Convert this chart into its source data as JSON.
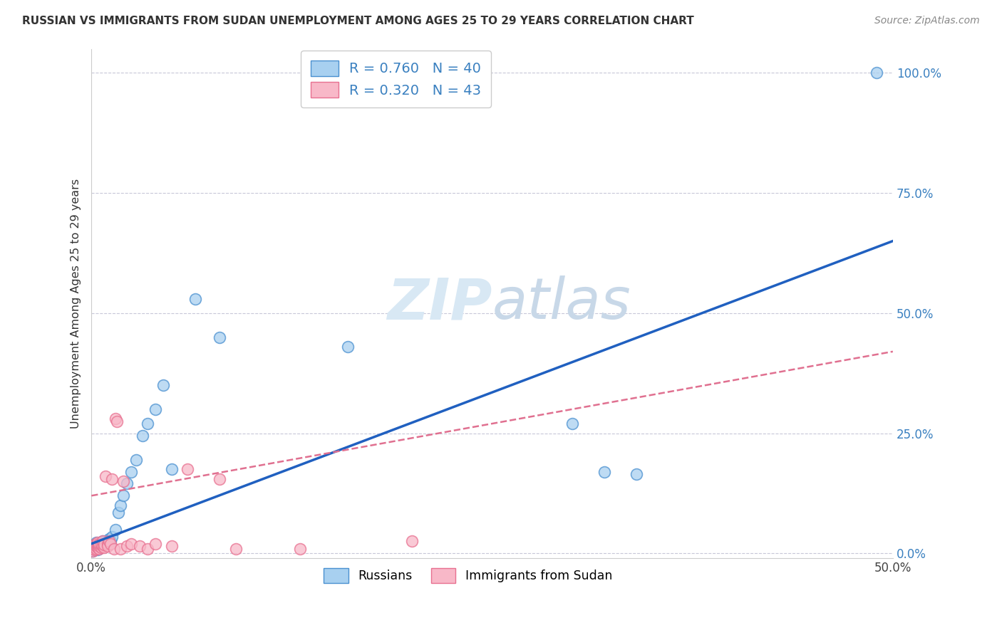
{
  "title": "RUSSIAN VS IMMIGRANTS FROM SUDAN UNEMPLOYMENT AMONG AGES 25 TO 29 YEARS CORRELATION CHART",
  "source": "Source: ZipAtlas.com",
  "ylabel": "Unemployment Among Ages 25 to 29 years",
  "russian_R": 0.76,
  "russian_N": 40,
  "sudan_R": 0.32,
  "sudan_N": 43,
  "legend_russians": "Russians",
  "legend_sudan": "Immigrants from Sudan",
  "blue_scatter_face": "#A8D0F0",
  "blue_scatter_edge": "#4A90D0",
  "pink_scatter_face": "#F8B8C8",
  "pink_scatter_edge": "#E87090",
  "blue_line_color": "#2060C0",
  "pink_line_color": "#E07090",
  "grid_color": "#C8C8D8",
  "watermark_color": "#D8E8F4",
  "xlim": [
    0.0,
    0.5
  ],
  "ylim": [
    -0.01,
    1.05
  ],
  "yticks": [
    0.0,
    0.25,
    0.5,
    0.75,
    1.0
  ],
  "ytick_labels": [
    "0.0%",
    "25.0%",
    "50.0%",
    "75.0%",
    "100.0%"
  ],
  "xticks": [
    0.0,
    0.1,
    0.2,
    0.3,
    0.4,
    0.5
  ],
  "xtick_labels": [
    "0.0%",
    "",
    "",
    "",
    "",
    "50.0%"
  ],
  "russian_x": [
    0.001,
    0.001,
    0.002,
    0.002,
    0.002,
    0.003,
    0.003,
    0.003,
    0.004,
    0.004,
    0.005,
    0.005,
    0.006,
    0.007,
    0.007,
    0.008,
    0.009,
    0.01,
    0.011,
    0.012,
    0.013,
    0.015,
    0.017,
    0.018,
    0.02,
    0.022,
    0.025,
    0.028,
    0.032,
    0.035,
    0.04,
    0.045,
    0.05,
    0.065,
    0.08,
    0.3,
    0.32,
    0.34,
    0.16,
    0.49
  ],
  "russian_y": [
    0.005,
    0.01,
    0.008,
    0.012,
    0.018,
    0.01,
    0.015,
    0.022,
    0.008,
    0.02,
    0.012,
    0.018,
    0.015,
    0.025,
    0.02,
    0.018,
    0.025,
    0.02,
    0.03,
    0.025,
    0.035,
    0.05,
    0.085,
    0.1,
    0.12,
    0.145,
    0.17,
    0.195,
    0.245,
    0.27,
    0.3,
    0.35,
    0.175,
    0.53,
    0.45,
    0.27,
    0.17,
    0.165,
    0.43,
    1.0
  ],
  "sudan_x": [
    0.001,
    0.001,
    0.001,
    0.002,
    0.002,
    0.002,
    0.003,
    0.003,
    0.003,
    0.004,
    0.004,
    0.004,
    0.005,
    0.005,
    0.005,
    0.006,
    0.006,
    0.007,
    0.007,
    0.008,
    0.008,
    0.009,
    0.01,
    0.01,
    0.011,
    0.012,
    0.013,
    0.014,
    0.015,
    0.016,
    0.018,
    0.02,
    0.022,
    0.025,
    0.03,
    0.035,
    0.04,
    0.05,
    0.06,
    0.08,
    0.09,
    0.13,
    0.2
  ],
  "sudan_y": [
    0.005,
    0.01,
    0.015,
    0.008,
    0.012,
    0.018,
    0.01,
    0.015,
    0.02,
    0.012,
    0.018,
    0.022,
    0.01,
    0.015,
    0.02,
    0.012,
    0.018,
    0.015,
    0.025,
    0.012,
    0.018,
    0.16,
    0.02,
    0.015,
    0.025,
    0.02,
    0.155,
    0.01,
    0.28,
    0.275,
    0.01,
    0.15,
    0.015,
    0.02,
    0.015,
    0.01,
    0.02,
    0.015,
    0.175,
    0.155,
    0.01,
    0.01,
    0.025
  ],
  "blue_line_x0": 0.0,
  "blue_line_y0": 0.02,
  "blue_line_x1": 0.5,
  "blue_line_y1": 0.65,
  "pink_line_x0": 0.0,
  "pink_line_y0": 0.12,
  "pink_line_x1": 0.5,
  "pink_line_y1": 0.42
}
